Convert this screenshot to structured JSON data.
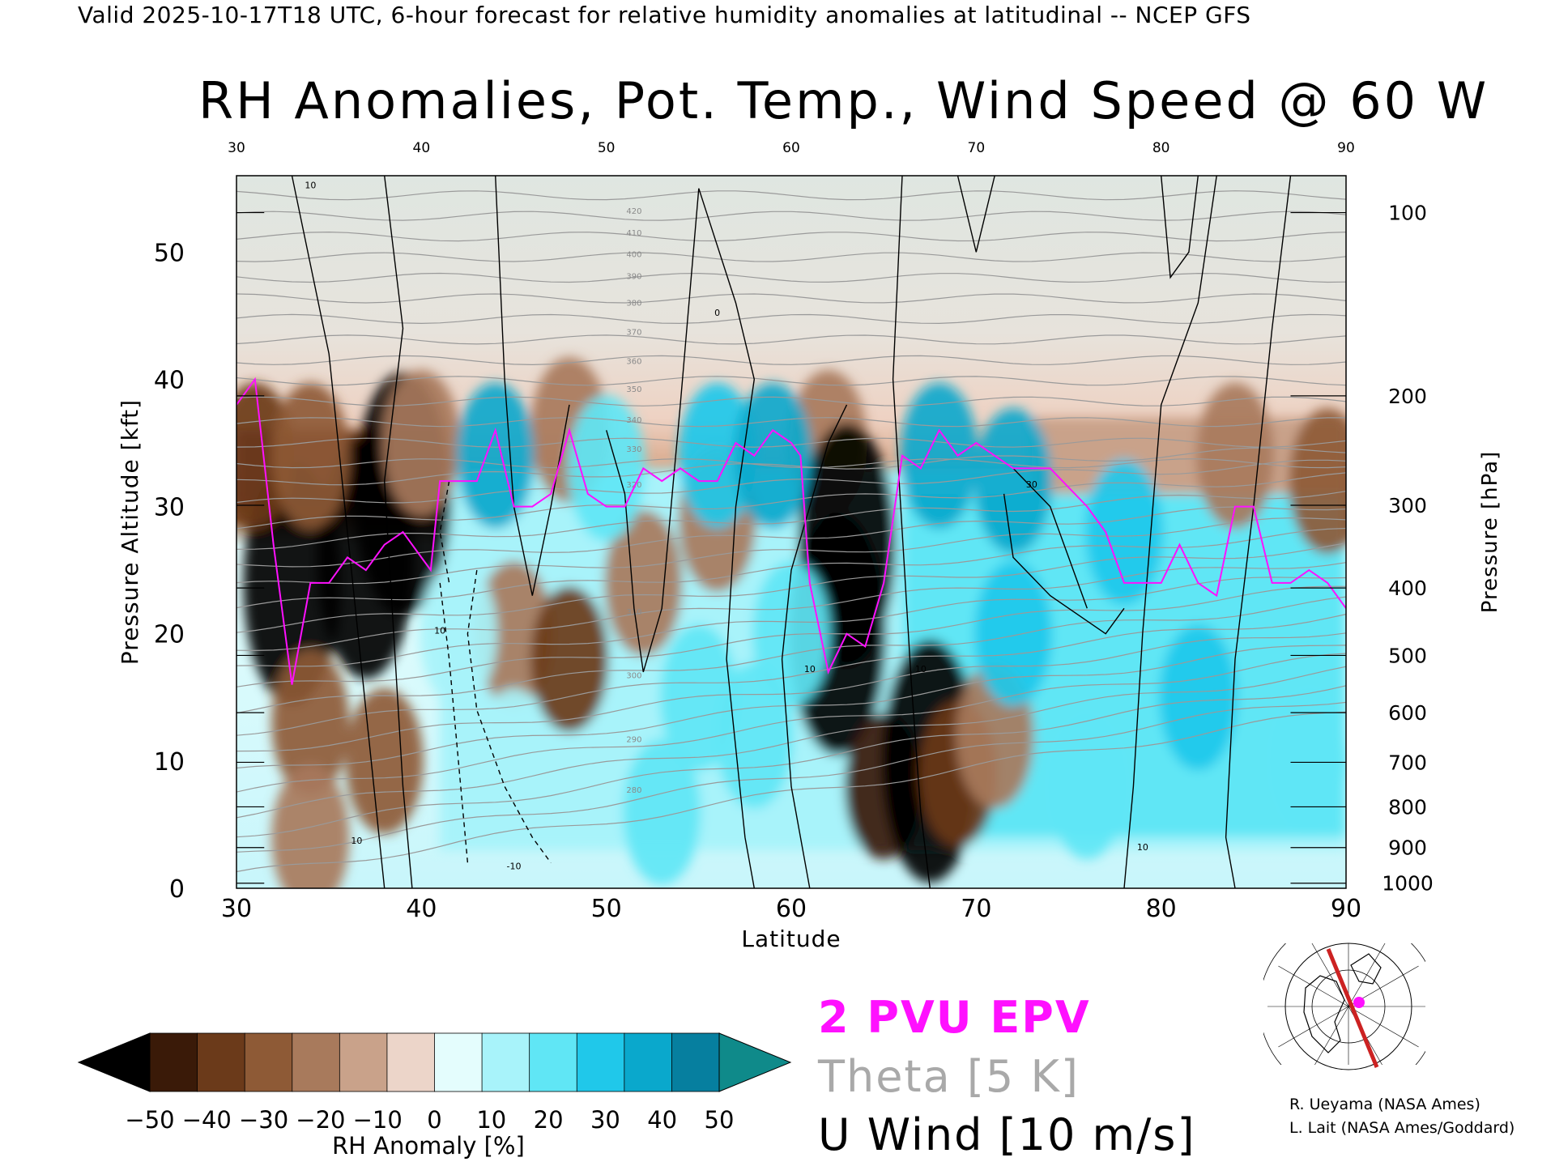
{
  "header": "Valid 2025-10-17T18 UTC, 6-hour forecast for relative humidity anomalies at latitudinal -- NCEP GFS",
  "chart_data": {
    "type": "heatmap",
    "title": "RH Anomalies, Pot. Temp., Wind Speed @ 60 W",
    "xlabel": "Latitude",
    "ylabel_left": "Pressure Altitude [kft]",
    "ylabel_right": "Pressure [hPa]",
    "x_ticks": [
      "30",
      "40",
      "50",
      "60",
      "70",
      "80",
      "90"
    ],
    "x_top_ticks": [
      "30",
      "40",
      "50",
      "60",
      "70",
      "80",
      "90"
    ],
    "y_ticks": [
      "0",
      "10",
      "20",
      "30",
      "40",
      "50"
    ],
    "pressure_ticks": [
      "100",
      "200",
      "300",
      "400",
      "500",
      "600",
      "700",
      "800",
      "900",
      "1000"
    ],
    "xlim": [
      30,
      90
    ],
    "ylim": [
      0,
      56
    ],
    "pressure_kft": [
      53.1,
      38.7,
      30.1,
      23.6,
      18.3,
      13.8,
      9.9,
      6.4,
      3.2,
      0.4
    ],
    "theta_labels": [
      "420",
      "410",
      "400",
      "390",
      "380",
      "370",
      "360",
      "350",
      "340",
      "330",
      "320",
      "310",
      "300",
      "290",
      "280"
    ],
    "wind_labels": [
      "10",
      "0",
      "-10",
      "30"
    ],
    "anomaly_fields": [
      {
        "lat": 33,
        "alt": 24,
        "v": -60
      },
      {
        "lat": 37,
        "alt": 26,
        "v": -70
      },
      {
        "lat": 39,
        "alt": 31,
        "v": -60
      },
      {
        "lat": 31,
        "alt": 34,
        "v": -40
      },
      {
        "lat": 34,
        "alt": 34,
        "v": -30
      },
      {
        "lat": 40,
        "alt": 35,
        "v": -20
      },
      {
        "lat": 48,
        "alt": 36,
        "v": -20
      },
      {
        "lat": 62,
        "alt": 35,
        "v": -20
      },
      {
        "lat": 84,
        "alt": 34,
        "v": -20
      },
      {
        "lat": 89,
        "alt": 32,
        "v": -30
      },
      {
        "lat": 34,
        "alt": 13,
        "v": -25
      },
      {
        "lat": 34,
        "alt": 4,
        "v": -20
      },
      {
        "lat": 38,
        "alt": 10,
        "v": -30
      },
      {
        "lat": 45,
        "alt": 20,
        "v": -15
      },
      {
        "lat": 48,
        "alt": 18,
        "v": -35
      },
      {
        "lat": 52,
        "alt": 24,
        "v": -20
      },
      {
        "lat": 56,
        "alt": 29,
        "v": -20
      },
      {
        "lat": 63,
        "alt": 27,
        "v": -70
      },
      {
        "lat": 62.5,
        "alt": 20,
        "v": -55
      },
      {
        "lat": 65,
        "alt": 8,
        "v": -45
      },
      {
        "lat": 67.5,
        "alt": 10,
        "v": -60
      },
      {
        "lat": 69,
        "alt": 9,
        "v": -35
      },
      {
        "lat": 71,
        "alt": 12,
        "v": -20
      },
      {
        "lat": 44,
        "alt": 34,
        "v": 40
      },
      {
        "lat": 50,
        "alt": 33,
        "v": 25
      },
      {
        "lat": 56,
        "alt": 34,
        "v": 35
      },
      {
        "lat": 59,
        "alt": 34,
        "v": 40
      },
      {
        "lat": 68,
        "alt": 34,
        "v": 45
      },
      {
        "lat": 72,
        "alt": 32,
        "v": 40
      },
      {
        "lat": 78,
        "alt": 28,
        "v": 30
      },
      {
        "lat": 72,
        "alt": 20,
        "v": 30
      },
      {
        "lat": 82,
        "alt": 15,
        "v": 30
      },
      {
        "lat": 88,
        "alt": 10,
        "v": 25
      },
      {
        "lat": 58,
        "alt": 12,
        "v": 25
      },
      {
        "lat": 53,
        "alt": 6,
        "v": 20
      },
      {
        "lat": 45,
        "alt": 10,
        "v": 10
      },
      {
        "lat": 42,
        "alt": 20,
        "v": 15
      },
      {
        "lat": 60,
        "alt": 20,
        "v": 25
      },
      {
        "lat": 55,
        "alt": 15,
        "v": 20
      },
      {
        "lat": 76,
        "alt": 8,
        "v": 25
      }
    ],
    "epv_2pvu": [
      [
        30,
        38
      ],
      [
        31,
        40
      ],
      [
        32,
        27
      ],
      [
        33,
        16
      ],
      [
        34,
        24
      ],
      [
        35,
        24
      ],
      [
        36,
        26
      ],
      [
        37,
        25
      ],
      [
        38,
        27
      ],
      [
        39,
        28
      ],
      [
        40,
        26
      ],
      [
        40.5,
        25
      ],
      [
        41,
        32
      ],
      [
        42,
        32
      ],
      [
        43,
        32
      ],
      [
        44,
        36
      ],
      [
        45,
        30
      ],
      [
        46,
        30
      ],
      [
        47,
        31
      ],
      [
        48,
        36
      ],
      [
        49,
        31
      ],
      [
        50,
        30
      ],
      [
        51,
        30
      ],
      [
        52,
        33
      ],
      [
        53,
        32
      ],
      [
        54,
        33
      ],
      [
        55,
        32
      ],
      [
        56,
        32
      ],
      [
        57,
        35
      ],
      [
        58,
        34
      ],
      [
        59,
        36
      ],
      [
        60,
        35
      ],
      [
        60.5,
        34
      ],
      [
        61,
        24
      ],
      [
        62,
        17
      ],
      [
        63,
        20
      ],
      [
        64,
        19
      ],
      [
        65,
        24
      ],
      [
        66,
        34
      ],
      [
        67,
        33
      ],
      [
        68,
        36
      ],
      [
        69,
        34
      ],
      [
        70,
        35
      ],
      [
        72,
        33
      ],
      [
        74,
        33
      ],
      [
        76,
        30
      ],
      [
        77,
        28
      ],
      [
        78,
        24
      ],
      [
        79,
        24
      ],
      [
        80,
        24
      ],
      [
        81,
        27
      ],
      [
        82,
        24
      ],
      [
        83,
        23
      ],
      [
        84,
        30
      ],
      [
        85,
        30
      ],
      [
        86,
        24
      ],
      [
        87,
        24
      ],
      [
        88,
        25
      ],
      [
        89,
        24
      ],
      [
        90,
        22
      ]
    ],
    "colorbar": {
      "label": "RH Anomaly [%]",
      "ticks": [
        "−50",
        "−40",
        "−30",
        "−20",
        "−10",
        "0",
        "10",
        "20",
        "30",
        "40",
        "50"
      ],
      "colors": [
        "#3a1a08",
        "#6b3a1a",
        "#8e5a36",
        "#a87a5c",
        "#c9a28a",
        "#ecd5c9",
        "#e4fdfd",
        "#a8f3fa",
        "#60e6f5",
        "#20c8ea",
        "#0aa8cc",
        "#067f9f"
      ],
      "under_color": "#000000",
      "over_color": "#0f8a8a"
    },
    "legend": {
      "epv": "2 PVU EPV",
      "theta": "Theta [5 K]",
      "wind": "U Wind [10 m/s]",
      "epv_color": "#ff10ff",
      "theta_color": "#a9a9a9",
      "wind_color": "#000000"
    }
  },
  "credits": [
    "R. Ueyama (NASA Ames)",
    "L. Lait (NASA Ames/Goddard)"
  ]
}
